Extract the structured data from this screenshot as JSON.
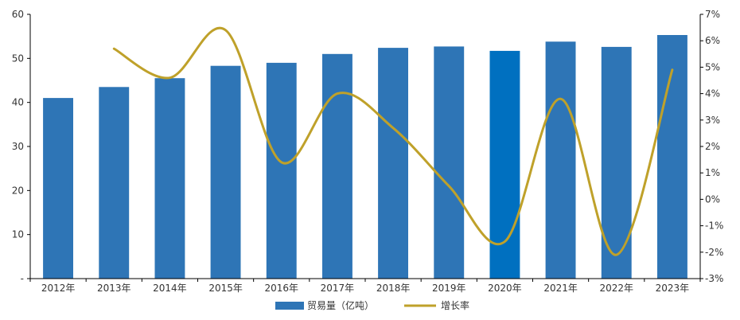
{
  "chart_data": {
    "type": "bar+line",
    "categories": [
      "2012年",
      "2013年",
      "2014年",
      "2015年",
      "2016年",
      "2017年",
      "2018年",
      "2019年",
      "2020年",
      "2021年",
      "2022年",
      "2023年"
    ],
    "series": [
      {
        "name": "贸易量（亿吨）",
        "type": "bar",
        "axis": "left",
        "values": [
          41.0,
          43.5,
          45.5,
          48.3,
          49.0,
          51.0,
          52.4,
          52.7,
          51.7,
          53.8,
          52.6,
          55.3
        ]
      },
      {
        "name": "增长率",
        "type": "line",
        "axis": "right",
        "values": [
          null,
          5.7,
          4.6,
          6.4,
          1.4,
          4.0,
          2.7,
          0.5,
          -1.6,
          3.8,
          -2.1,
          4.9
        ]
      }
    ],
    "y_left": {
      "min": 0,
      "max": 60,
      "ticks": [
        "-",
        "10",
        "20",
        "30",
        "40",
        "50",
        "60"
      ]
    },
    "y_right": {
      "min": -3,
      "max": 7,
      "ticks": [
        "-3%",
        "-2%",
        "-1%",
        "0%",
        "1%",
        "2%",
        "3%",
        "4%",
        "5%",
        "6%",
        "7%"
      ]
    },
    "grid": false,
    "legend_position": "bottom",
    "colors": {
      "bar": "#2E75B6",
      "bar_highlight": "#0070C0",
      "line": "#BFA12A",
      "axis": "#000000",
      "text": "#333333"
    },
    "highlight_index": 8
  }
}
